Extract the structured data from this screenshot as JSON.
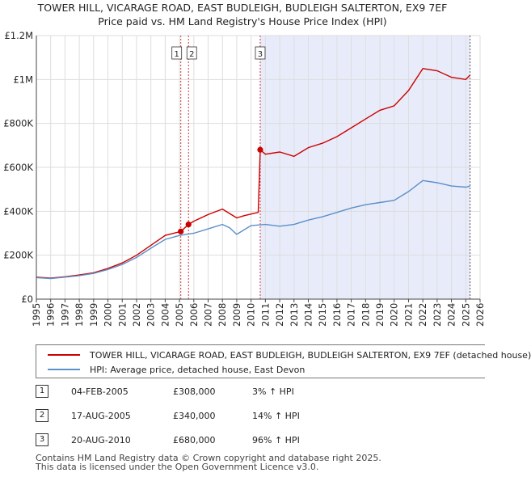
{
  "chart_data": {
    "type": "line",
    "title": "TOWER HILL, VICARAGE ROAD, EAST BUDLEIGH, BUDLEIGH SALTERTON, EX9 7EF",
    "subtitle": "Price paid vs. HM Land Registry's House Price Index (HPI)",
    "xlabel": "",
    "ylabel": "",
    "xlim": [
      1995,
      2026
    ],
    "ylim": [
      0,
      1200000
    ],
    "x_ticks": [
      "1995",
      "1996",
      "1997",
      "1998",
      "1999",
      "2000",
      "2001",
      "2002",
      "2003",
      "2004",
      "2005",
      "2006",
      "2007",
      "2008",
      "2009",
      "2010",
      "2011",
      "2012",
      "2013",
      "2014",
      "2015",
      "2016",
      "2017",
      "2018",
      "2019",
      "2020",
      "2021",
      "2022",
      "2023",
      "2024",
      "2025",
      "2026"
    ],
    "y_ticks": [
      {
        "value": 0,
        "label": "£0"
      },
      {
        "value": 200000,
        "label": "£200K"
      },
      {
        "value": 400000,
        "label": "£400K"
      },
      {
        "value": 600000,
        "label": "£600K"
      },
      {
        "value": 800000,
        "label": "£800K"
      },
      {
        "value": 1000000,
        "label": "£1M"
      },
      {
        "value": 1200000,
        "label": "£1.2M"
      }
    ],
    "grid": true,
    "series": [
      {
        "name": "TOWER HILL, VICARAGE ROAD, EAST BUDLEIGH, BUDLEIGH SALTERTON, EX9 7EF (detached house)",
        "color": "#cc0000",
        "points": [
          [
            1995,
            100000
          ],
          [
            1996,
            96000
          ],
          [
            1997,
            102000
          ],
          [
            1998,
            110000
          ],
          [
            1999,
            120000
          ],
          [
            2000,
            140000
          ],
          [
            2001,
            165000
          ],
          [
            2002,
            200000
          ],
          [
            2003,
            245000
          ],
          [
            2004,
            290000
          ],
          [
            2005.09,
            308000
          ],
          [
            2005.63,
            340000
          ],
          [
            2006,
            355000
          ],
          [
            2007,
            385000
          ],
          [
            2008,
            410000
          ],
          [
            2008.5,
            390000
          ],
          [
            2009,
            370000
          ],
          [
            2009.5,
            380000
          ],
          [
            2010.5,
            395000
          ],
          [
            2010.64,
            680000
          ],
          [
            2011,
            660000
          ],
          [
            2012,
            670000
          ],
          [
            2013,
            650000
          ],
          [
            2014,
            690000
          ],
          [
            2015,
            710000
          ],
          [
            2016,
            740000
          ],
          [
            2017,
            780000
          ],
          [
            2018,
            820000
          ],
          [
            2019,
            860000
          ],
          [
            2020,
            880000
          ],
          [
            2021,
            950000
          ],
          [
            2022,
            1050000
          ],
          [
            2023,
            1040000
          ],
          [
            2024,
            1010000
          ],
          [
            2025,
            1000000
          ],
          [
            2025.3,
            1020000
          ]
        ]
      },
      {
        "name": "HPI: Average price, detached house, East Devon",
        "color": "#5b8fc8",
        "points": [
          [
            1995,
            98000
          ],
          [
            1996,
            94000
          ],
          [
            1997,
            100000
          ],
          [
            1998,
            107000
          ],
          [
            1999,
            117000
          ],
          [
            2000,
            135000
          ],
          [
            2001,
            158000
          ],
          [
            2002,
            190000
          ],
          [
            2003,
            232000
          ],
          [
            2004,
            272000
          ],
          [
            2005,
            290000
          ],
          [
            2006,
            300000
          ],
          [
            2007,
            320000
          ],
          [
            2008,
            340000
          ],
          [
            2008.5,
            325000
          ],
          [
            2009,
            295000
          ],
          [
            2009.5,
            315000
          ],
          [
            2010,
            335000
          ],
          [
            2011,
            340000
          ],
          [
            2012,
            332000
          ],
          [
            2013,
            340000
          ],
          [
            2014,
            360000
          ],
          [
            2015,
            375000
          ],
          [
            2016,
            395000
          ],
          [
            2017,
            415000
          ],
          [
            2018,
            430000
          ],
          [
            2019,
            440000
          ],
          [
            2020,
            450000
          ],
          [
            2021,
            490000
          ],
          [
            2022,
            540000
          ],
          [
            2023,
            530000
          ],
          [
            2024,
            515000
          ],
          [
            2025,
            510000
          ],
          [
            2025.3,
            515000
          ]
        ]
      }
    ],
    "transactions": [
      {
        "label": "1",
        "x": 2005.09,
        "value": 308000
      },
      {
        "label": "2",
        "x": 2005.63,
        "value": 340000
      },
      {
        "label": "3",
        "x": 2010.64,
        "value": 680000
      }
    ],
    "shaded_region": [
      2010.64,
      2025.3
    ],
    "forecast_from": 2025.3
  },
  "legend": {
    "property_label": "TOWER HILL, VICARAGE ROAD, EAST BUDLEIGH, BUDLEIGH SALTERTON, EX9 7EF (detached house)",
    "hpi_label": "HPI: Average price, detached house, East Devon"
  },
  "table": [
    {
      "num": "1",
      "date": "04-FEB-2005",
      "price": "£308,000",
      "hpi": "3% ↑ HPI"
    },
    {
      "num": "2",
      "date": "17-AUG-2005",
      "price": "£340,000",
      "hpi": "14% ↑ HPI"
    },
    {
      "num": "3",
      "date": "20-AUG-2010",
      "price": "£680,000",
      "hpi": "96% ↑ HPI"
    }
  ],
  "footer": {
    "line1": "Contains HM Land Registry data © Crown copyright and database right 2025.",
    "line2": "This data is licensed under the Open Government Licence v3.0."
  },
  "colors": {
    "property": "#cc0000",
    "hpi": "#5b8fc8",
    "shade": "#e8ecfa",
    "grid": "#dddddd"
  }
}
